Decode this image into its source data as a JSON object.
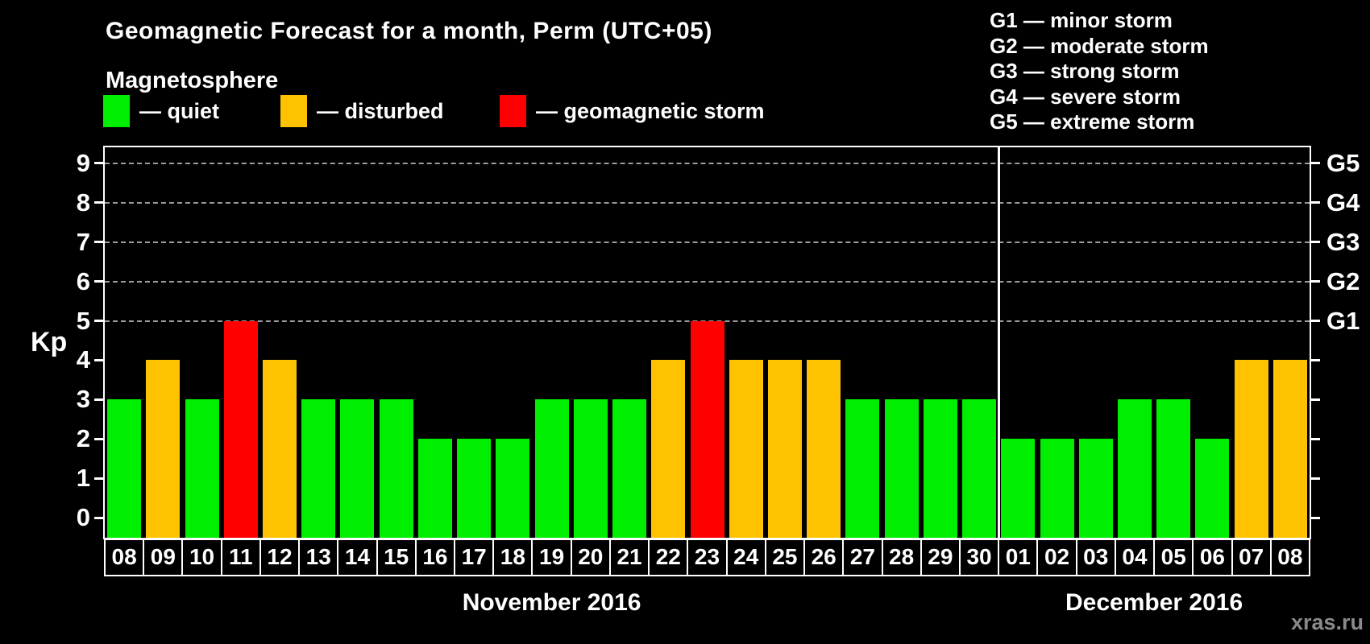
{
  "header": {
    "title": "Geomagnetic Forecast for a month, Perm (UTC+05)",
    "subtitle": "Magnetosphere",
    "legend": [
      {
        "level": "quiet",
        "label": "— quiet",
        "color": "#00ee00"
      },
      {
        "level": "disturbed",
        "label": "— disturbed",
        "color": "#ffc200"
      },
      {
        "level": "storm",
        "label": "— geomagnetic storm",
        "color": "#fe0000"
      }
    ]
  },
  "g_legend": [
    "G1 — minor storm",
    "G2 — moderate storm",
    "G3 — strong storm",
    "G4 — severe storm",
    "G5 — extreme storm"
  ],
  "watermark": "xras.ru",
  "chart_data": {
    "type": "bar",
    "title": "Geomagnetic Forecast for a month, Perm (UTC+05)",
    "xlabel": "",
    "ylabel": "Kp",
    "ylim": [
      0,
      9.5
    ],
    "yticks": [
      0,
      1,
      2,
      3,
      4,
      5,
      6,
      7,
      8,
      9
    ],
    "gridlines_at_kp": [
      5,
      6,
      7,
      8,
      9
    ],
    "grid": "dashed, only at storm levels G1–G5",
    "legend_position": "top",
    "right_axis": [
      {
        "kp": 5,
        "label": "G1"
      },
      {
        "kp": 6,
        "label": "G2"
      },
      {
        "kp": 7,
        "label": "G3"
      },
      {
        "kp": 8,
        "label": "G4"
      },
      {
        "kp": 9,
        "label": "G5"
      }
    ],
    "colors": {
      "quiet": "#00ee00",
      "disturbed": "#ffc200",
      "storm": "#fe0000"
    },
    "months": [
      {
        "label": "November 2016",
        "days": [
          {
            "day": "08",
            "kp": 3,
            "level": "quiet"
          },
          {
            "day": "09",
            "kp": 4,
            "level": "disturbed"
          },
          {
            "day": "10",
            "kp": 3,
            "level": "quiet"
          },
          {
            "day": "11",
            "kp": 5,
            "level": "storm"
          },
          {
            "day": "12",
            "kp": 4,
            "level": "disturbed"
          },
          {
            "day": "13",
            "kp": 3,
            "level": "quiet"
          },
          {
            "day": "14",
            "kp": 3,
            "level": "quiet"
          },
          {
            "day": "15",
            "kp": 3,
            "level": "quiet"
          },
          {
            "day": "16",
            "kp": 2,
            "level": "quiet"
          },
          {
            "day": "17",
            "kp": 2,
            "level": "quiet"
          },
          {
            "day": "18",
            "kp": 2,
            "level": "quiet"
          },
          {
            "day": "19",
            "kp": 3,
            "level": "quiet"
          },
          {
            "day": "20",
            "kp": 3,
            "level": "quiet"
          },
          {
            "day": "21",
            "kp": 3,
            "level": "quiet"
          },
          {
            "day": "22",
            "kp": 4,
            "level": "disturbed"
          },
          {
            "day": "23",
            "kp": 5,
            "level": "storm"
          },
          {
            "day": "24",
            "kp": 4,
            "level": "disturbed"
          },
          {
            "day": "25",
            "kp": 4,
            "level": "disturbed"
          },
          {
            "day": "26",
            "kp": 4,
            "level": "disturbed"
          },
          {
            "day": "27",
            "kp": 3,
            "level": "quiet"
          },
          {
            "day": "28",
            "kp": 3,
            "level": "quiet"
          },
          {
            "day": "29",
            "kp": 3,
            "level": "quiet"
          },
          {
            "day": "30",
            "kp": 3,
            "level": "quiet"
          }
        ]
      },
      {
        "label": "December 2016",
        "days": [
          {
            "day": "01",
            "kp": 2,
            "level": "quiet"
          },
          {
            "day": "02",
            "kp": 2,
            "level": "quiet"
          },
          {
            "day": "03",
            "kp": 2,
            "level": "quiet"
          },
          {
            "day": "04",
            "kp": 3,
            "level": "quiet"
          },
          {
            "day": "05",
            "kp": 3,
            "level": "quiet"
          },
          {
            "day": "06",
            "kp": 2,
            "level": "quiet"
          },
          {
            "day": "07",
            "kp": 4,
            "level": "disturbed"
          },
          {
            "day": "08",
            "kp": 4,
            "level": "disturbed"
          }
        ]
      }
    ]
  }
}
